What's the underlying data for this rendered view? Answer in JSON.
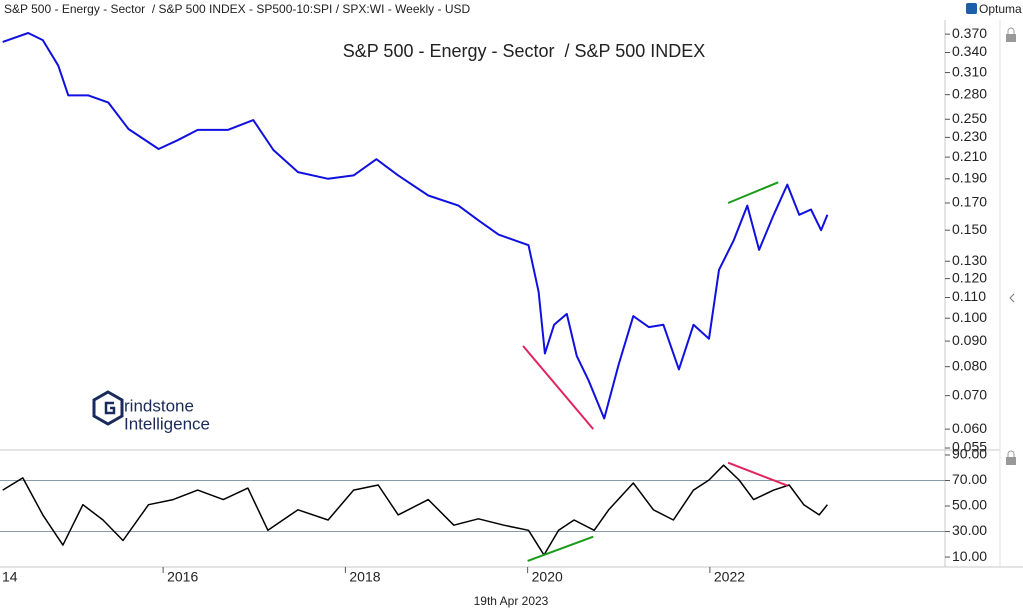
{
  "header": {
    "title": "S&P 500 - Energy - Sector  / S&P 500 INDEX - SP500-10:SPI / SPX:WI - Weekly - USD",
    "brand": "Optuma",
    "date": "19th Apr 2023"
  },
  "watermark": {
    "line1": "rindstone",
    "line2": "Intelligence"
  },
  "chart_data": [
    {
      "type": "line",
      "title": "S&P 500 - Energy - Sector  / S&P 500 INDEX",
      "color": "#1010e0",
      "log_scale": true,
      "x": [
        2014.24,
        2014.52,
        2014.68,
        2014.85,
        2014.96,
        2015.18,
        2015.4,
        2015.62,
        2015.95,
        2016.16,
        2016.38,
        2016.71,
        2016.99,
        2017.21,
        2017.48,
        2017.81,
        2018.09,
        2018.34,
        2018.58,
        2018.91,
        2019.24,
        2019.46,
        2019.68,
        2020.01,
        2020.12,
        2020.19,
        2020.29,
        2020.43,
        2020.54,
        2020.67,
        2020.84,
        2021.0,
        2021.16,
        2021.33,
        2021.49,
        2021.66,
        2021.82,
        2021.99,
        2022.1,
        2022.26,
        2022.41,
        2022.54,
        2022.7,
        2022.85,
        2022.98,
        2023.11,
        2023.22,
        2023.29
      ],
      "values": [
        0.357,
        0.372,
        0.36,
        0.32,
        0.279,
        0.279,
        0.27,
        0.239,
        0.218,
        0.227,
        0.238,
        0.238,
        0.249,
        0.217,
        0.196,
        0.19,
        0.193,
        0.208,
        0.193,
        0.176,
        0.168,
        0.157,
        0.147,
        0.14,
        0.113,
        0.085,
        0.097,
        0.102,
        0.084,
        0.075,
        0.063,
        0.081,
        0.101,
        0.096,
        0.097,
        0.079,
        0.097,
        0.091,
        0.125,
        0.143,
        0.168,
        0.137,
        0.161,
        0.185,
        0.161,
        0.165,
        0.15,
        0.161
      ],
      "xlim": [
        2014.21,
        2024.58
      ],
      "ylim": [
        0.0545,
        0.433
      ],
      "yticks": [
        {
          "value": 0.055,
          "label": "0.055"
        },
        {
          "value": 0.06,
          "label": "0.060"
        },
        {
          "value": 0.07,
          "label": "0.070"
        },
        {
          "value": 0.08,
          "label": "0.080"
        },
        {
          "value": 0.09,
          "label": "0.090"
        },
        {
          "value": 0.1,
          "label": "0.100"
        },
        {
          "value": 0.11,
          "label": "0.110"
        },
        {
          "value": 0.12,
          "label": "0.120"
        },
        {
          "value": 0.13,
          "label": "0.130"
        },
        {
          "value": 0.15,
          "label": "0.150"
        },
        {
          "value": 0.17,
          "label": "0.170"
        },
        {
          "value": 0.19,
          "label": "0.190"
        },
        {
          "value": 0.21,
          "label": "0.210"
        },
        {
          "value": 0.23,
          "label": "0.230"
        },
        {
          "value": 0.25,
          "label": "0.250"
        },
        {
          "value": 0.28,
          "label": "0.280"
        },
        {
          "value": 0.31,
          "label": "0.310"
        },
        {
          "value": 0.34,
          "label": "0.340"
        },
        {
          "value": 0.37,
          "label": "0.370"
        }
      ],
      "trendlines": [
        {
          "x": [
            2019.95,
            2020.72
          ],
          "y": [
            0.088,
            0.06
          ],
          "color": "#e0245e"
        },
        {
          "x": [
            2022.2,
            2022.75
          ],
          "y": [
            0.17,
            0.187
          ],
          "color": "#1a9a1a"
        }
      ]
    },
    {
      "type": "line",
      "color": "#000000",
      "x": [
        2014.24,
        2014.46,
        2014.68,
        2014.9,
        2015.12,
        2015.34,
        2015.56,
        2015.84,
        2016.11,
        2016.38,
        2016.66,
        2016.93,
        2017.15,
        2017.48,
        2017.81,
        2018.09,
        2018.36,
        2018.58,
        2018.91,
        2019.19,
        2019.46,
        2019.74,
        2020.01,
        2020.18,
        2020.34,
        2020.51,
        2020.73,
        2020.89,
        2021.16,
        2021.38,
        2021.6,
        2021.82,
        2021.99,
        2022.15,
        2022.32,
        2022.48,
        2022.7,
        2022.87,
        2023.03,
        2023.2,
        2023.29
      ],
      "values": [
        62.5,
        72,
        43,
        19.4,
        51,
        39,
        23,
        51,
        55,
        62.5,
        55,
        64,
        31,
        47,
        39,
        62.5,
        66.5,
        43,
        55,
        35,
        40,
        35,
        31,
        11.6,
        31,
        39,
        31,
        47,
        68,
        47,
        39,
        62.5,
        70.4,
        82,
        70.4,
        55,
        62.5,
        66.5,
        51,
        43,
        51
      ],
      "xlim": [
        2014.21,
        2024.58
      ],
      "ylim": [
        2.2,
        93.9
      ],
      "yticks": [
        {
          "value": 10,
          "label": "10.00"
        },
        {
          "value": 30,
          "label": "30.00"
        },
        {
          "value": 50,
          "label": "50.00"
        },
        {
          "value": 70,
          "label": "70.00"
        },
        {
          "value": 90,
          "label": "90.00"
        }
      ],
      "xticks": [
        {
          "value": 2014,
          "label": "14"
        },
        2016,
        2018,
        2020,
        2022
      ],
      "hlines": [
        70,
        30
      ],
      "trendlines": [
        {
          "x": [
            2020.0,
            2020.72
          ],
          "y": [
            7,
            26
          ],
          "color": "#1a9a1a"
        },
        {
          "x": [
            2022.2,
            2022.85
          ],
          "y": [
            84,
            66
          ],
          "color": "#e0245e"
        }
      ]
    }
  ]
}
